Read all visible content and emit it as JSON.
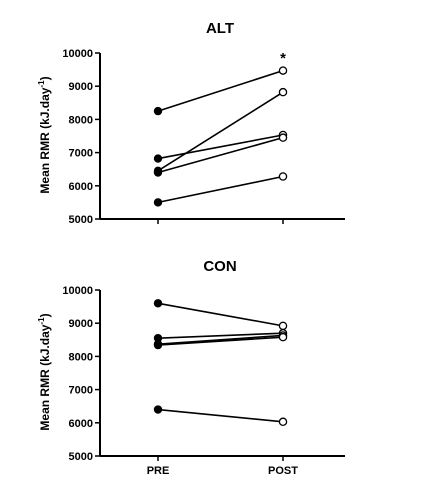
{
  "chart_data": [
    {
      "type": "line",
      "title": "ALT",
      "ylabel_main": "Mean RMR (kJ.day",
      "ylabel_sup": "-1",
      "ylabel_close": ")",
      "categories": [
        "PRE",
        "POST"
      ],
      "ylim": [
        5000,
        10000
      ],
      "yticks": [
        "5000",
        "6000",
        "7000",
        "8000",
        "9000",
        "10000"
      ],
      "annotation": "*",
      "series": [
        {
          "values": [
            8250,
            9470
          ]
        },
        {
          "values": [
            6450,
            8820
          ]
        },
        {
          "values": [
            6820,
            7530
          ]
        },
        {
          "values": [
            6400,
            7450
          ]
        },
        {
          "values": [
            5500,
            6280
          ]
        }
      ]
    },
    {
      "type": "line",
      "title": "CON",
      "ylabel_main": "Mean RMR (kJ.day",
      "ylabel_sup": "-1",
      "ylabel_close": ")",
      "categories": [
        "PRE",
        "POST"
      ],
      "ylim": [
        5000,
        10000
      ],
      "yticks": [
        "5000",
        "6000",
        "7000",
        "8000",
        "9000",
        "10000"
      ],
      "series": [
        {
          "values": [
            9600,
            8920
          ]
        },
        {
          "values": [
            8550,
            8700
          ]
        },
        {
          "values": [
            8370,
            8630
          ]
        },
        {
          "values": [
            8340,
            8580
          ]
        },
        {
          "values": [
            6400,
            6030
          ]
        }
      ]
    }
  ]
}
